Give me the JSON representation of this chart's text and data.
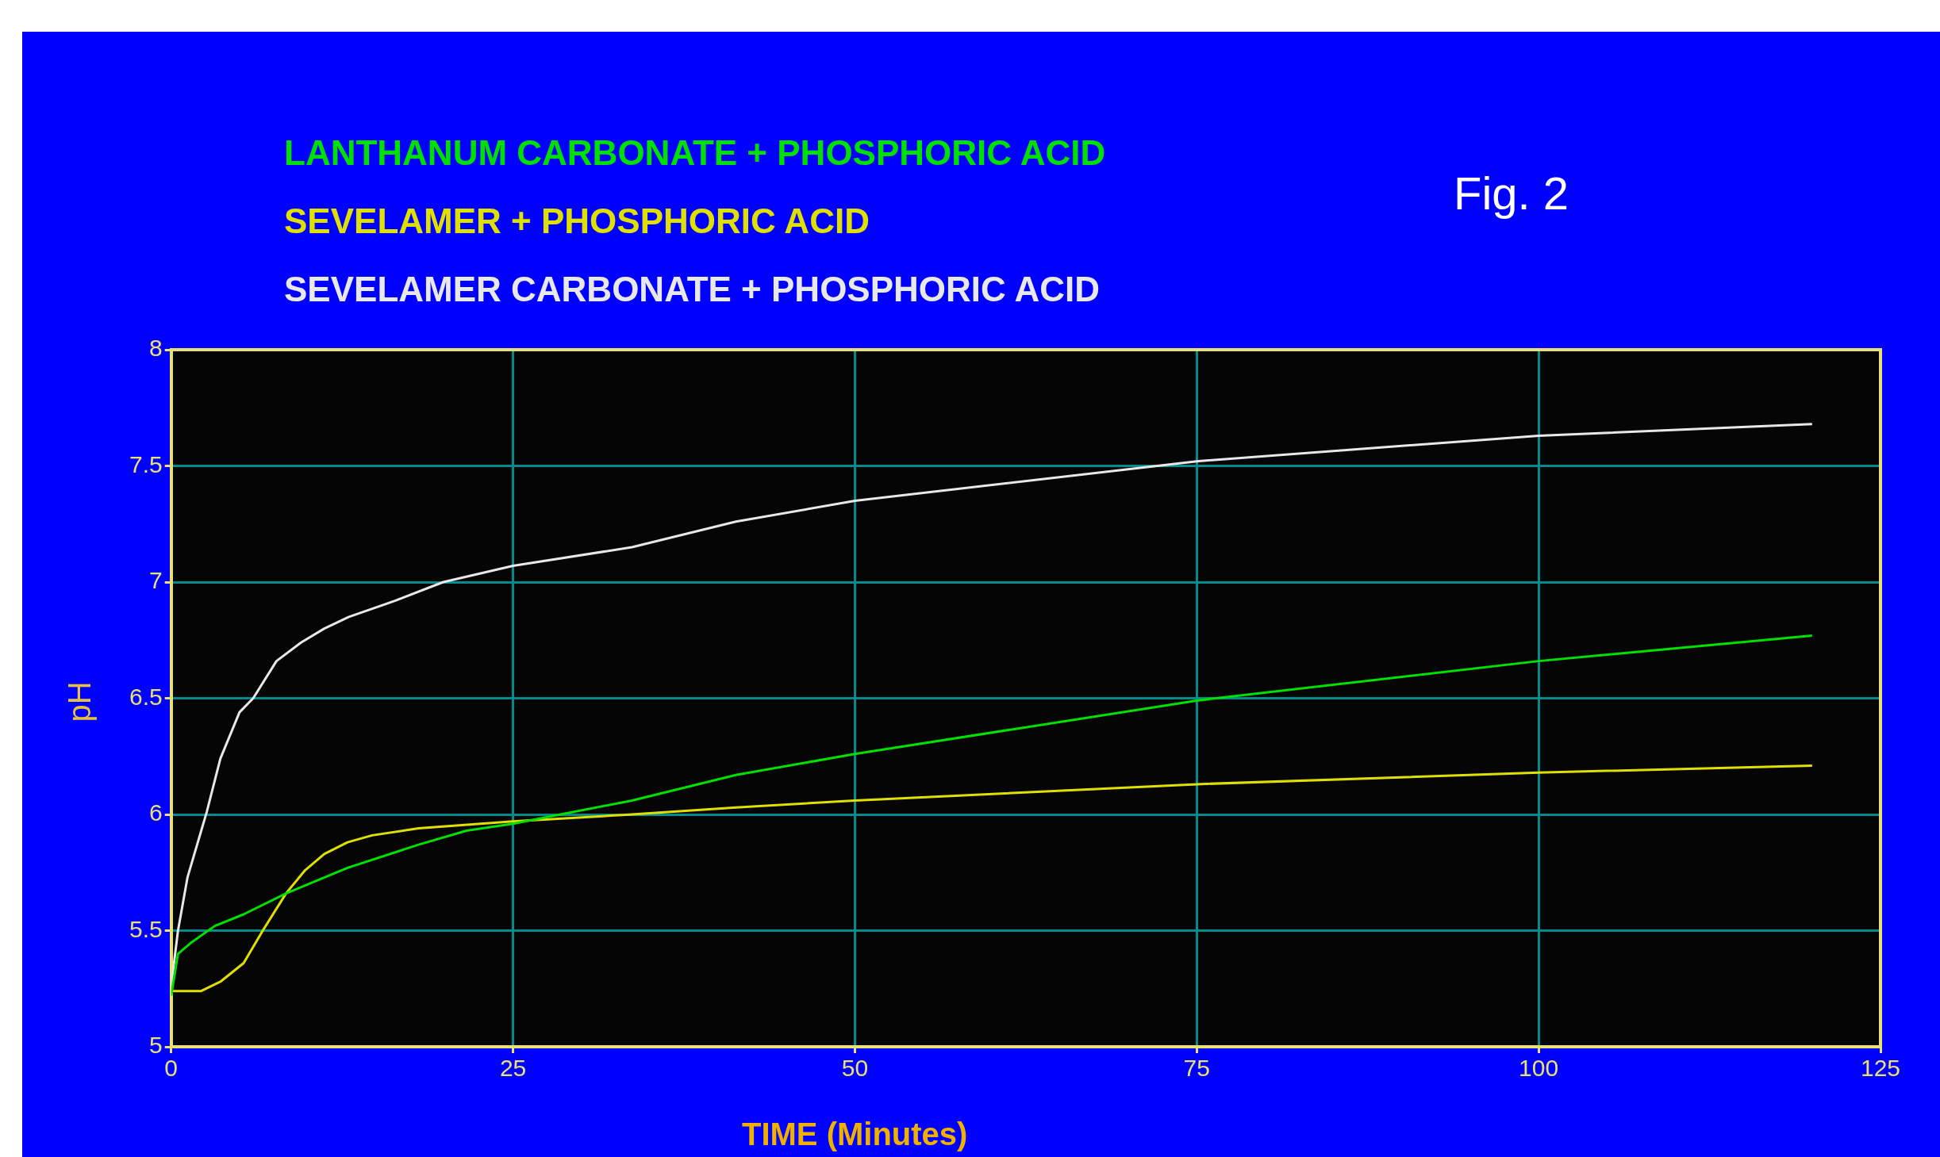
{
  "chart_data": {
    "type": "line",
    "xlabel": "TIME (Minutes)",
    "ylabel": "pH",
    "annotations": [
      "Fig. 2"
    ],
    "legend": "top left",
    "grid": true,
    "marker": "none",
    "line_style": "solid",
    "xlim": [
      0,
      125
    ],
    "xticks": [
      0,
      25,
      50,
      75,
      100,
      125
    ],
    "ylim": [
      5,
      8
    ],
    "yticks": [
      5,
      5.5,
      6,
      6.5,
      7,
      7.5,
      8
    ],
    "series": [
      {
        "name": "LANTHANUM CARBONATE + PHOSPHORIC ACID",
        "color": "#00e000",
        "x": [
          0,
          0.5,
          1.5,
          3.2,
          5.3,
          8.4,
          12.9,
          18.1,
          21.6,
          25,
          33.7,
          41.3,
          50,
          75,
          100,
          120
        ],
        "values": [
          5.22,
          5.4,
          5.45,
          5.52,
          5.57,
          5.66,
          5.77,
          5.87,
          5.93,
          5.96,
          6.06,
          6.17,
          6.26,
          6.49,
          6.66,
          6.77
        ]
      },
      {
        "name": "SEVELAMER + PHOSPHORIC ACID",
        "color": "#e0e000",
        "x": [
          0,
          2.2,
          3.6,
          5.3,
          6.7,
          8.4,
          9.8,
          11.2,
          12.9,
          14.7,
          18.1,
          25,
          33.7,
          41.3,
          50,
          75,
          100,
          120
        ],
        "values": [
          5.24,
          5.24,
          5.28,
          5.36,
          5.5,
          5.66,
          5.76,
          5.83,
          5.88,
          5.91,
          5.94,
          5.97,
          6,
          6.03,
          6.06,
          6.13,
          6.18,
          6.21
        ]
      },
      {
        "name": "SEVELAMER CARBONATE + PHOSPHORIC ACID",
        "color": "#e8e8e8",
        "x": [
          0,
          0.5,
          1.2,
          2.6,
          3.6,
          5,
          6,
          7.7,
          9.5,
          11.2,
          13,
          16.4,
          19.9,
          25,
          33.7,
          41.3,
          50,
          75,
          100,
          120
        ],
        "values": [
          5.26,
          5.5,
          5.73,
          6.01,
          6.24,
          6.44,
          6.5,
          6.66,
          6.74,
          6.8,
          6.85,
          6.92,
          7,
          7.07,
          7.15,
          7.26,
          7.35,
          7.52,
          7.63,
          7.68
        ]
      }
    ]
  }
}
